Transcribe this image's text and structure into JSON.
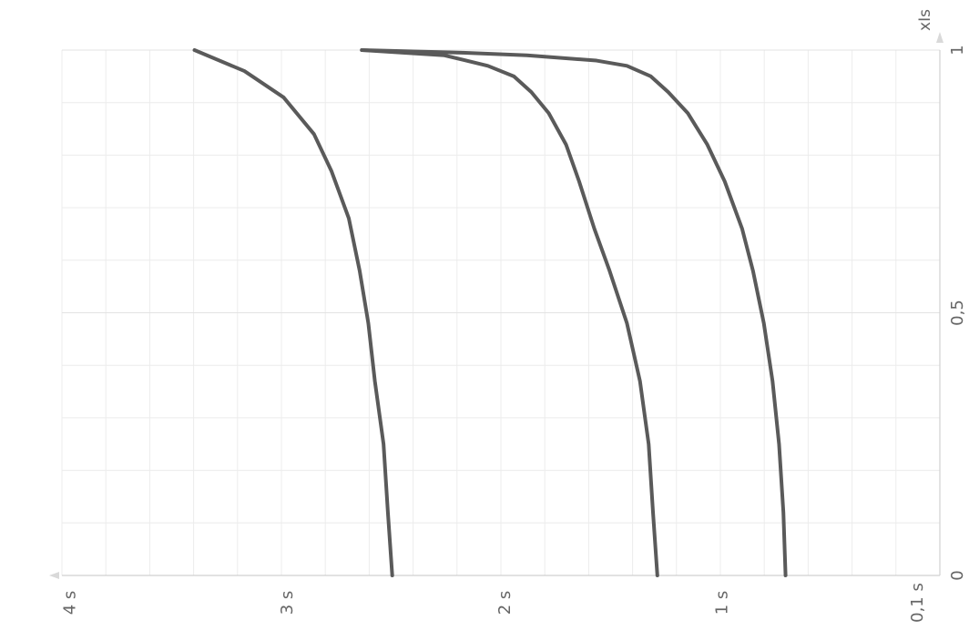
{
  "chart_data": {
    "type": "line",
    "title": "",
    "orientation": "rotated-90",
    "x_axis": {
      "label": "",
      "ticks": [
        {
          "value": 4,
          "label": "4 s"
        },
        {
          "value": 3,
          "label": "3 s"
        },
        {
          "value": 2,
          "label": "2 s"
        },
        {
          "value": 1,
          "label": "1 s"
        },
        {
          "value": 0.1,
          "label": "0,1 s"
        }
      ],
      "range": [
        4.04,
        0
      ]
    },
    "y_axis": {
      "label": "xIs",
      "ticks": [
        {
          "value": 0,
          "label": "0"
        },
        {
          "value": 0.5,
          "label": "0,5"
        },
        {
          "value": 1,
          "label": "1"
        }
      ],
      "range": [
        0,
        1
      ]
    },
    "grid": true,
    "series": [
      {
        "points": [
          [
            2.52,
            0.0
          ],
          [
            2.54,
            0.12
          ],
          [
            2.56,
            0.25
          ],
          [
            2.6,
            0.37
          ],
          [
            2.63,
            0.48
          ],
          [
            2.67,
            0.58
          ],
          [
            2.72,
            0.68
          ],
          [
            2.8,
            0.77
          ],
          [
            2.88,
            0.84
          ],
          [
            3.02,
            0.91
          ],
          [
            3.2,
            0.96
          ],
          [
            3.43,
            1.0
          ]
        ]
      },
      {
        "points": [
          [
            1.3,
            0.0
          ],
          [
            1.32,
            0.12
          ],
          [
            1.34,
            0.25
          ],
          [
            1.38,
            0.37
          ],
          [
            1.44,
            0.48
          ],
          [
            1.52,
            0.58
          ],
          [
            1.59,
            0.66
          ],
          [
            1.66,
            0.75
          ],
          [
            1.72,
            0.82
          ],
          [
            1.8,
            0.88
          ],
          [
            1.88,
            0.92
          ],
          [
            1.96,
            0.95
          ],
          [
            2.08,
            0.97
          ],
          [
            2.28,
            0.99
          ],
          [
            2.66,
            1.0
          ]
        ]
      },
      {
        "points": [
          [
            0.71,
            0.0
          ],
          [
            0.72,
            0.12
          ],
          [
            0.74,
            0.25
          ],
          [
            0.77,
            0.37
          ],
          [
            0.81,
            0.48
          ],
          [
            0.86,
            0.58
          ],
          [
            0.91,
            0.66
          ],
          [
            0.99,
            0.75
          ],
          [
            1.07,
            0.82
          ],
          [
            1.16,
            0.88
          ],
          [
            1.25,
            0.92
          ],
          [
            1.33,
            0.95
          ],
          [
            1.44,
            0.97
          ],
          [
            1.58,
            0.98
          ],
          [
            1.9,
            0.99
          ],
          [
            2.2,
            0.995
          ],
          [
            2.66,
            1.0
          ]
        ]
      }
    ]
  }
}
